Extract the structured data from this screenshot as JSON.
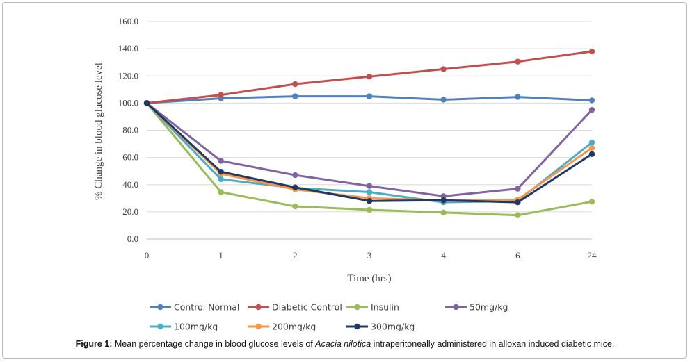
{
  "chart_data": {
    "type": "line",
    "categories": [
      "0",
      "1",
      "2",
      "3",
      "4",
      "6",
      "24"
    ],
    "xlabel": "Time (hrs)",
    "ylabel": "% Change in blood glucose level",
    "ylim": [
      0,
      160
    ],
    "yticks": [
      "0.0",
      "20.0",
      "40.0",
      "60.0",
      "80.0",
      "100.0",
      "120.0",
      "140.0",
      "160.0"
    ],
    "grid": true,
    "legend_position": "bottom",
    "series": [
      {
        "name": "Control Normal",
        "color": "#4f81bd",
        "values": [
          100,
          103.5,
          105,
          105,
          102.5,
          104.5,
          102
        ]
      },
      {
        "name": "Diabetic Control",
        "color": "#c0504d",
        "values": [
          100,
          106,
          114,
          119.5,
          125,
          130.5,
          138
        ]
      },
      {
        "name": "Insulin",
        "color": "#9bbb59",
        "values": [
          100,
          34.5,
          24,
          21.5,
          19.5,
          17.5,
          27.5
        ]
      },
      {
        "name": "50mg/kg",
        "color": "#8064a2",
        "values": [
          100,
          57.5,
          47,
          39,
          31.5,
          37,
          95
        ]
      },
      {
        "name": "100mg/kg",
        "color": "#4bacc6",
        "values": [
          100,
          44,
          37.5,
          34.5,
          27,
          28,
          71
        ]
      },
      {
        "name": "200mg/kg",
        "color": "#f79646",
        "values": [
          100,
          48,
          36.5,
          30,
          28.5,
          29,
          67
        ]
      },
      {
        "name": "300mg/kg",
        "color": "#1f3864",
        "values": [
          100,
          49.5,
          38,
          28,
          28.5,
          27,
          62.5
        ]
      }
    ]
  },
  "caption": {
    "label": "Figure 1:",
    "text_before": " Mean percentage change in blood glucose levels of ",
    "species": "Acacia nilotica",
    "text_after": " intraperitoneally administered in alloxan induced diabetic mice."
  }
}
